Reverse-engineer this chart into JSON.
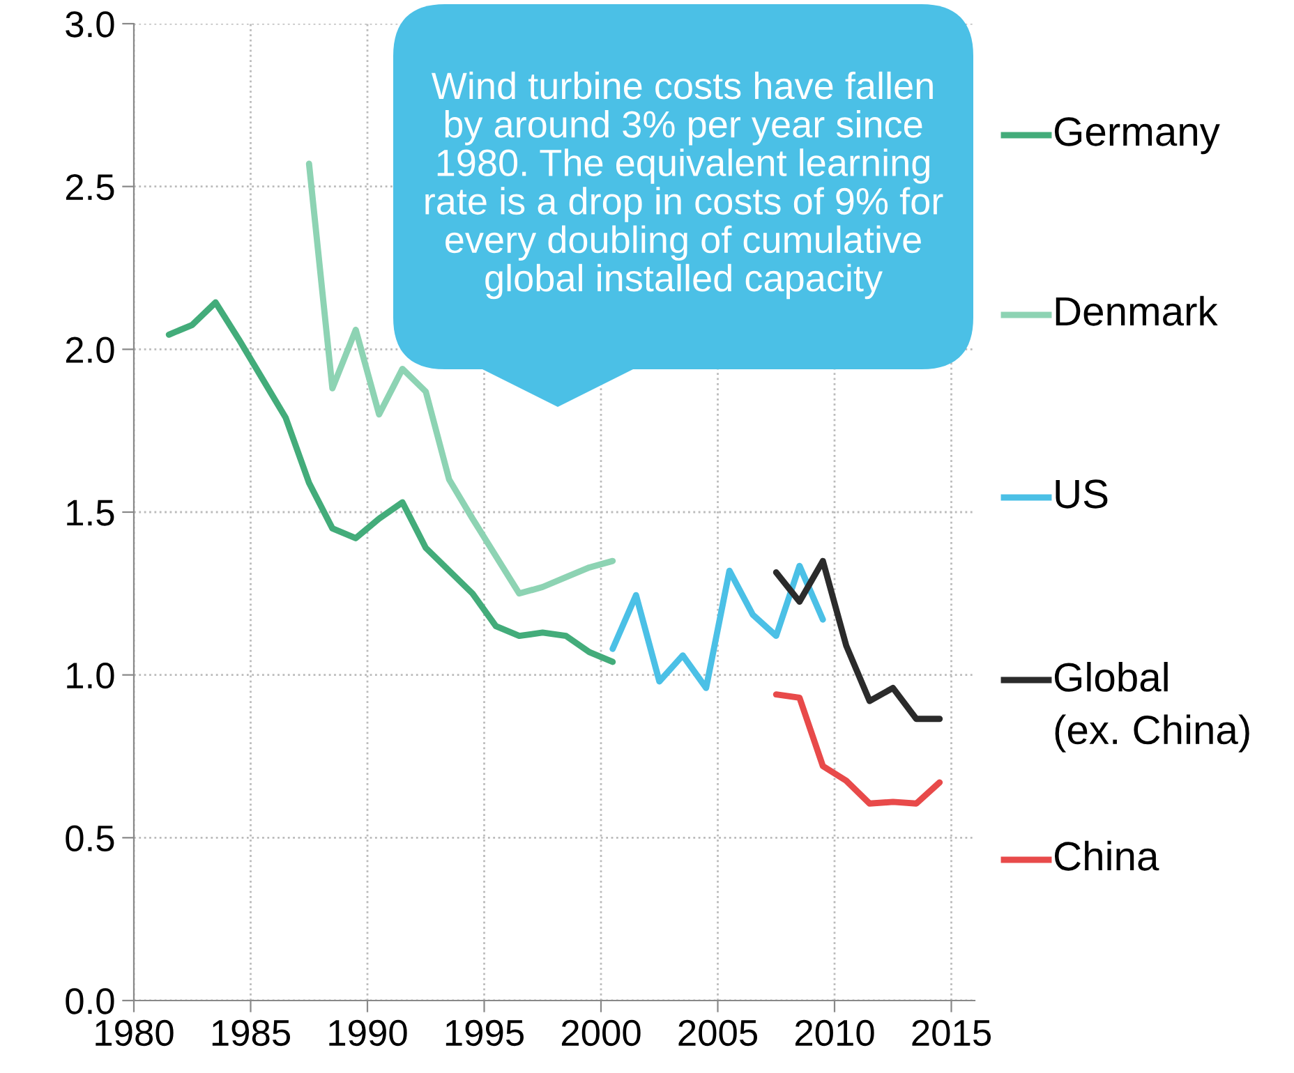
{
  "chart_data": {
    "type": "line",
    "xlim": [
      1980,
      2016
    ],
    "xticks": [
      1980,
      1985,
      1990,
      1995,
      2000,
      2005,
      2010,
      2015
    ],
    "ylim": [
      0,
      3
    ],
    "yticks": [
      {
        "value": 0,
        "label": "0.0"
      },
      {
        "value": 0.5,
        "label": "0.5"
      },
      {
        "value": 1,
        "label": "1.0"
      },
      {
        "value": 1.5,
        "label": "1.5"
      },
      {
        "value": 2,
        "label": "2.0"
      },
      {
        "value": 2.5,
        "label": "2.5"
      },
      {
        "value": 3,
        "label": "3.0"
      }
    ],
    "grid": true,
    "legend": "right",
    "line_style": "solid",
    "marker": "none",
    "annotations": [
      "Wind turbine costs have fallen by around 3% per year since 1980. The equivalent learning rate is a drop in costs of 9% for every doubling of cumulative global installed capacity"
    ],
    "series": [
      {
        "name": "Germany",
        "color": "#43ac7a",
        "x": [
          1981.5,
          1982.5,
          1983.5,
          1984.5,
          1985.5,
          1986.5,
          1987.5,
          1988.5,
          1989.5,
          1990.5,
          1991.5,
          1992.5,
          1993.5,
          1994.5,
          1995.5,
          1996.5,
          1997.5,
          1998.5,
          1999.5,
          2000.5
        ],
        "values": [
          2.045,
          2.075,
          2.144,
          2.03,
          1.91,
          1.79,
          1.59,
          1.45,
          1.42,
          1.48,
          1.53,
          1.39,
          1.32,
          1.25,
          1.15,
          1.12,
          1.13,
          1.12,
          1.07,
          1.04
        ]
      },
      {
        "name": "Denmark",
        "color": "#8dd3b3",
        "x": [
          1987.5,
          1988.5,
          1989.5,
          1990.5,
          1991.5,
          1992.5,
          1993.5,
          1994.5,
          1995.5,
          1996.5,
          1997.5,
          1998.5,
          1999.5,
          2000.5
        ],
        "values": [
          2.57,
          1.88,
          2.06,
          1.8,
          1.94,
          1.87,
          1.6,
          1.48,
          1.365,
          1.25,
          1.27,
          1.3,
          1.33,
          1.35
        ]
      },
      {
        "name": "US",
        "color": "#4bc0e6",
        "x": [
          2000.5,
          2001.5,
          2002.5,
          2003.5,
          2004.5,
          2005.5,
          2006.5,
          2007.5,
          2008.5,
          2009.5
        ],
        "values": [
          1.08,
          1.245,
          0.98,
          1.06,
          0.96,
          1.32,
          1.185,
          1.12,
          1.335,
          1.17
        ]
      },
      {
        "name": "Global\n(ex. China)",
        "color": "#2b2b2b",
        "x": [
          2007.5,
          2008.5,
          2009.5,
          2010.5,
          2011.5,
          2012.5,
          2013.5,
          2014.5
        ],
        "values": [
          1.315,
          1.225,
          1.35,
          1.09,
          0.92,
          0.96,
          0.865,
          0.865
        ]
      },
      {
        "name": "China",
        "color": "#e84a4a",
        "x": [
          2007.5,
          2008.5,
          2009.5,
          2010.5,
          2011.5,
          2012.5,
          2013.5,
          2014.5
        ],
        "values": [
          0.94,
          0.93,
          0.72,
          0.675,
          0.605,
          0.61,
          0.605,
          0.67
        ]
      }
    ]
  }
}
